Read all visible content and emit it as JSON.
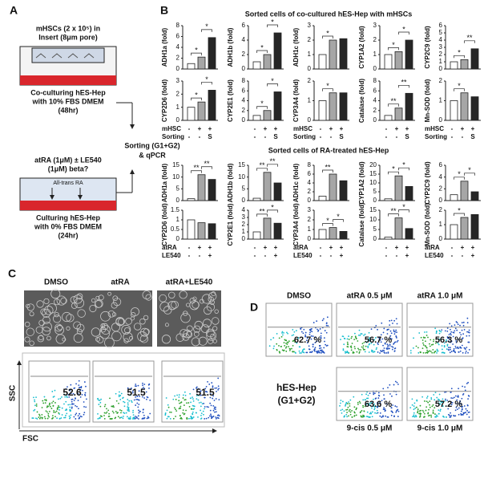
{
  "panel_a": {
    "label": "A",
    "insert_text": [
      "mHSCs (2 x 10⁵) in",
      "Insert (8μm pore)"
    ],
    "coculture_text": [
      "Co-culturing hES-Hep",
      "with 10%  FBS DMEM",
      "(48hr)"
    ],
    "treatment_text": [
      "atRA (1μM) ± LE540",
      "(1μM) beta?"
    ],
    "ra_label": "All-trans RA",
    "culture_text": [
      "Culturing hES-Hep",
      "with 0%  FBS DMEM",
      "(24hr)"
    ],
    "sorting_text": [
      "Sorting (G1+G2)",
      "& qPCR"
    ]
  },
  "panel_b": {
    "label": "B",
    "groups": [
      {
        "title": "Sorted cells of co-cultured hES-Hep with mHSCs",
        "conditions": [
          {
            "name": "mHSC",
            "marks": [
              "-",
              "+",
              "+"
            ]
          },
          {
            "name": "Sorting",
            "marks": [
              "-",
              "-",
              "S"
            ]
          }
        ]
      },
      {
        "title": "Sorted cells of RA-treated hES-Hep",
        "conditions": [
          {
            "name": "atRA",
            "marks": [
              "-",
              "+",
              "+"
            ]
          },
          {
            "name": "LE540",
            "marks": [
              "-",
              "-",
              "+"
            ]
          }
        ]
      }
    ]
  },
  "chart_data": [
    {
      "type": "bar",
      "ylabel": "ADH1a (fold)",
      "categories": [
        null,
        null,
        null
      ],
      "values": [
        1,
        2.2,
        5.8
      ],
      "colors": [
        "#ffffff",
        "#a6a6a6",
        "#262626"
      ],
      "ylim": [
        0,
        8
      ],
      "yticks": [
        0,
        2,
        4,
        6,
        8
      ],
      "annotations": [
        "*",
        "*"
      ]
    },
    {
      "type": "bar",
      "ylabel": "ADH1b (fold)",
      "categories": [
        null,
        null,
        null
      ],
      "values": [
        1,
        2,
        5
      ],
      "colors": [
        "#ffffff",
        "#a6a6a6",
        "#262626"
      ],
      "ylim": [
        0,
        6
      ],
      "yticks": [
        0,
        2,
        4,
        6
      ],
      "annotations": [
        "*",
        "*"
      ]
    },
    {
      "type": "bar",
      "ylabel": "ADH1c (fold)",
      "categories": [
        null,
        null,
        null
      ],
      "values": [
        1,
        2,
        2.1
      ],
      "colors": [
        "#ffffff",
        "#a6a6a6",
        "#262626"
      ],
      "ylim": [
        0,
        3
      ],
      "yticks": [
        0,
        1,
        2,
        3
      ],
      "annotations": [
        "*"
      ]
    },
    {
      "type": "bar",
      "ylabel": "CYP1A2 (fold)",
      "categories": [
        null,
        null,
        null
      ],
      "values": [
        1,
        1.2,
        2
      ],
      "colors": [
        "#ffffff",
        "#a6a6a6",
        "#262626"
      ],
      "ylim": [
        0,
        3
      ],
      "yticks": [
        0,
        1,
        2,
        3
      ],
      "annotations": [
        "*",
        "*"
      ]
    },
    {
      "type": "bar",
      "ylabel": "CYP2C9 (fold)",
      "categories": [
        null,
        null,
        null
      ],
      "values": [
        1,
        1.3,
        2.8
      ],
      "colors": [
        "#ffffff",
        "#a6a6a6",
        "#262626"
      ],
      "ylim": [
        0,
        6
      ],
      "yticks": [
        0,
        1,
        2,
        3,
        4,
        5,
        6
      ],
      "annotations": [
        "*",
        "**"
      ]
    },
    {
      "type": "bar",
      "ylabel": "CYP2D6 (fold)",
      "categories": [
        null,
        null,
        null
      ],
      "values": [
        1,
        1.4,
        2.3
      ],
      "colors": [
        "#ffffff",
        "#a6a6a6",
        "#262626"
      ],
      "ylim": [
        0,
        3
      ],
      "yticks": [
        0,
        1,
        2,
        3
      ],
      "annotations": [
        "*",
        "*"
      ]
    },
    {
      "type": "bar",
      "ylabel": "CYP2E1 (fold)",
      "categories": [
        null,
        null,
        null
      ],
      "values": [
        1,
        2,
        5.8
      ],
      "colors": [
        "#ffffff",
        "#a6a6a6",
        "#262626"
      ],
      "ylim": [
        0,
        8
      ],
      "yticks": [
        0,
        2,
        4,
        6,
        8
      ],
      "annotations": [
        "*",
        "*"
      ]
    },
    {
      "type": "bar",
      "ylabel": "CYP3A4 (fold)",
      "categories": [
        null,
        null,
        null
      ],
      "values": [
        1,
        1.4,
        1.4
      ],
      "colors": [
        "#ffffff",
        "#a6a6a6",
        "#262626"
      ],
      "ylim": [
        0,
        2
      ],
      "yticks": [
        0,
        1,
        2
      ],
      "annotations": [
        "*"
      ]
    },
    {
      "type": "bar",
      "ylabel": "Catalase (fold)",
      "categories": [
        null,
        null,
        null
      ],
      "values": [
        1,
        2.5,
        5.5
      ],
      "colors": [
        "#ffffff",
        "#a6a6a6",
        "#262626"
      ],
      "ylim": [
        0,
        8
      ],
      "yticks": [
        0,
        2,
        4,
        6,
        8
      ],
      "annotations": [
        "**",
        "**"
      ]
    },
    {
      "type": "bar",
      "ylabel": "Mn-SOD (fold)",
      "categories": [
        null,
        null,
        null
      ],
      "values": [
        1,
        1.4,
        1.2
      ],
      "colors": [
        "#ffffff",
        "#a6a6a6",
        "#262626"
      ],
      "ylim": [
        0,
        2
      ],
      "yticks": [
        0,
        1,
        2
      ],
      "annotations": [
        "*"
      ]
    },
    {
      "type": "bar",
      "ylabel": "ADH1a (fold)",
      "categories": [
        null,
        null,
        null
      ],
      "values": [
        0.8,
        11,
        9
      ],
      "colors": [
        "#ffffff",
        "#a6a6a6",
        "#262626"
      ],
      "ylim": [
        0,
        15
      ],
      "yticks": [
        0,
        5,
        10,
        15
      ],
      "annotations": [
        "**",
        "**"
      ]
    },
    {
      "type": "bar",
      "ylabel": "ADH1b (fold)",
      "categories": [
        null,
        null,
        null
      ],
      "values": [
        1,
        12,
        7.5
      ],
      "colors": [
        "#ffffff",
        "#a6a6a6",
        "#262626"
      ],
      "ylim": [
        0,
        15
      ],
      "yticks": [
        0,
        5,
        10,
        15
      ],
      "annotations": [
        "**",
        "**"
      ]
    },
    {
      "type": "bar",
      "ylabel": "ADH1c (fold)",
      "categories": [
        null,
        null,
        null
      ],
      "values": [
        1,
        6,
        4.5
      ],
      "colors": [
        "#ffffff",
        "#a6a6a6",
        "#262626"
      ],
      "ylim": [
        0,
        8
      ],
      "yticks": [
        0,
        2,
        4,
        6,
        8
      ],
      "annotations": [
        "**"
      ]
    },
    {
      "type": "bar",
      "ylabel": "CYP1A2 (fold)",
      "categories": [
        null,
        null,
        null
      ],
      "values": [
        1,
        14,
        8
      ],
      "colors": [
        "#ffffff",
        "#a6a6a6",
        "#262626"
      ],
      "ylim": [
        0,
        20
      ],
      "yticks": [
        0,
        5,
        10,
        15,
        20
      ],
      "annotations": [
        "*",
        "*"
      ]
    },
    {
      "type": "bar",
      "ylabel": "CYP2C9 (fold)",
      "categories": [
        null,
        null,
        null
      ],
      "values": [
        1,
        3.3,
        1.5
      ],
      "colors": [
        "#ffffff",
        "#a6a6a6",
        "#262626"
      ],
      "ylim": [
        0,
        6
      ],
      "yticks": [
        0,
        2,
        4,
        6
      ],
      "annotations": [
        "*",
        "*"
      ]
    },
    {
      "type": "bar",
      "ylabel": "CYP2D6 (fold)",
      "categories": [
        null,
        null,
        null
      ],
      "values": [
        1,
        0.85,
        0.8
      ],
      "colors": [
        "#ffffff",
        "#a6a6a6",
        "#262626"
      ],
      "ylim": [
        0,
        1.5
      ],
      "yticks": [
        0,
        0.5,
        1,
        1.5
      ],
      "annotations": []
    },
    {
      "type": "bar",
      "ylabel": "CYP2E1 (fold)",
      "categories": [
        null,
        null,
        null
      ],
      "values": [
        1,
        2.9,
        2.2
      ],
      "colors": [
        "#ffffff",
        "#a6a6a6",
        "#262626"
      ],
      "ylim": [
        0,
        4
      ],
      "yticks": [
        0,
        1,
        2,
        3,
        4
      ],
      "annotations": [
        "**",
        "*"
      ]
    },
    {
      "type": "bar",
      "ylabel": "CYP3A4 (fold)",
      "categories": [
        null,
        null,
        null
      ],
      "values": [
        1,
        1.2,
        0.8
      ],
      "colors": [
        "#ffffff",
        "#a6a6a6",
        "#262626"
      ],
      "ylim": [
        0,
        3
      ],
      "yticks": [
        0,
        1,
        2,
        3
      ],
      "annotations": [
        "*",
        "*"
      ]
    },
    {
      "type": "bar",
      "ylabel": "Catalase (fold)",
      "categories": [
        null,
        null,
        null
      ],
      "values": [
        1,
        11,
        5.5
      ],
      "colors": [
        "#ffffff",
        "#a6a6a6",
        "#262626"
      ],
      "ylim": [
        0,
        15
      ],
      "yticks": [
        0,
        5,
        10,
        15
      ],
      "annotations": [
        "**",
        "*"
      ]
    },
    {
      "type": "bar",
      "ylabel": "Mn-SOD (fold)",
      "categories": [
        null,
        null,
        null
      ],
      "values": [
        1,
        1.5,
        1.7
      ],
      "colors": [
        "#ffffff",
        "#a6a6a6",
        "#262626"
      ],
      "ylim": [
        0,
        2
      ],
      "yticks": [
        0,
        1,
        2
      ],
      "annotations": [
        "*"
      ]
    }
  ],
  "panel_c": {
    "label": "C",
    "conditions": [
      "DMSO",
      "atRA",
      "atRA+LE540"
    ],
    "percentages": [
      "52.6",
      "51.5",
      "51.5"
    ],
    "y_axis": "SSC",
    "x_axis": "FSC"
  },
  "panel_d": {
    "label": "D",
    "plots": [
      {
        "title": "DMSO",
        "percent": "62.7 %"
      },
      {
        "title": "atRA 0.5 μM",
        "percent": "56.7 %"
      },
      {
        "title": "atRA 1.0 μM",
        "percent": "56.3 %"
      },
      {
        "title": "9-cis 0.5 μM",
        "percent": "63.6 %"
      },
      {
        "title": "9-cis 1.0 μM",
        "percent": "57.2 %"
      }
    ],
    "caption": [
      "hES-Hep",
      "(G1+G2)"
    ]
  }
}
